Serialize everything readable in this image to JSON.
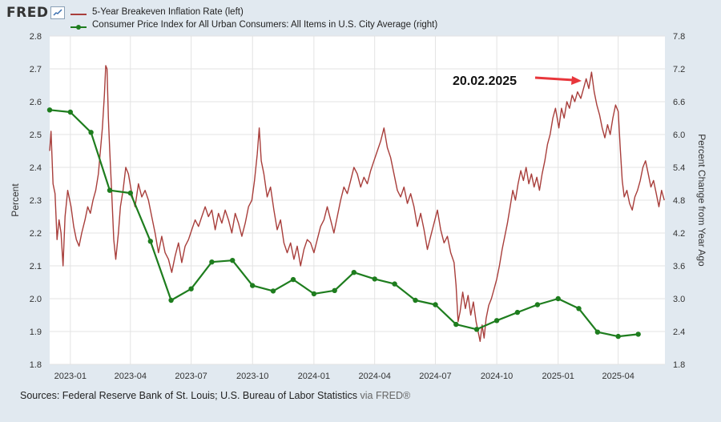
{
  "header": {
    "logo_text": "FRED",
    "logo_icon": "trend-line-icon"
  },
  "legend": [
    {
      "label": "5-Year Breakeven Inflation Rate (left)",
      "color": "#a83e3b",
      "marker": "none"
    },
    {
      "label": "Consumer Price Index for All Urban Consumers: All Items in U.S. City Average (right)",
      "color": "#1e7d1e",
      "marker": "dot"
    }
  ],
  "annotation": {
    "text": "20.02.2025",
    "color": "#e8363b"
  },
  "source": {
    "text": "Sources: Federal Reserve Bank of St. Louis; U.S. Bureau of Labor Statistics",
    "via": "via FRED®"
  },
  "chart_data": {
    "type": "line",
    "grid": true,
    "legend_position": "top-left",
    "x_range": [
      "2022-12-01",
      "2025-06-10"
    ],
    "x_ticks": [
      {
        "date": "2023-01-01",
        "label": "2023-01"
      },
      {
        "date": "2023-04-01",
        "label": "2023-04"
      },
      {
        "date": "2023-07-01",
        "label": "2023-07"
      },
      {
        "date": "2023-10-01",
        "label": "2023-10"
      },
      {
        "date": "2024-01-01",
        "label": "2024-01"
      },
      {
        "date": "2024-04-01",
        "label": "2024-04"
      },
      {
        "date": "2024-07-01",
        "label": "2024-07"
      },
      {
        "date": "2024-10-01",
        "label": "2024-10"
      },
      {
        "date": "2025-01-01",
        "label": "2025-01"
      },
      {
        "date": "2025-04-01",
        "label": "2025-04"
      }
    ],
    "y_left": {
      "label": "Percent",
      "range": [
        1.8,
        2.8
      ],
      "ticks": [
        "1.8",
        "1.9",
        "2.0",
        "2.1",
        "2.2",
        "2.3",
        "2.4",
        "2.5",
        "2.6",
        "2.7",
        "2.8"
      ]
    },
    "y_right": {
      "label": "Percent Change from Year Ago",
      "range": [
        1.8,
        7.8
      ],
      "ticks": [
        "1.8",
        "2.4",
        "3.0",
        "3.6",
        "4.2",
        "4.8",
        "5.4",
        "6.0",
        "6.6",
        "7.2",
        "7.8"
      ]
    },
    "series": [
      {
        "name": "5-Year Breakeven Inflation Rate (left)",
        "axis": "left",
        "color": "#a83e3b",
        "points": [
          [
            "2022-12-01",
            2.45
          ],
          [
            "2022-12-03",
            2.51
          ],
          [
            "2022-12-06",
            2.35
          ],
          [
            "2022-12-09",
            2.32
          ],
          [
            "2022-12-12",
            2.18
          ],
          [
            "2022-12-15",
            2.24
          ],
          [
            "2022-12-18",
            2.2
          ],
          [
            "2022-12-21",
            2.1
          ],
          [
            "2022-12-24",
            2.25
          ],
          [
            "2022-12-28",
            2.33
          ],
          [
            "2023-01-02",
            2.28
          ],
          [
            "2023-01-06",
            2.22
          ],
          [
            "2023-01-10",
            2.18
          ],
          [
            "2023-01-14",
            2.16
          ],
          [
            "2023-01-18",
            2.2
          ],
          [
            "2023-01-23",
            2.24
          ],
          [
            "2023-01-27",
            2.28
          ],
          [
            "2023-01-31",
            2.26
          ],
          [
            "2023-02-04",
            2.3
          ],
          [
            "2023-02-08",
            2.33
          ],
          [
            "2023-02-12",
            2.38
          ],
          [
            "2023-02-15",
            2.45
          ],
          [
            "2023-02-18",
            2.52
          ],
          [
            "2023-02-21",
            2.62
          ],
          [
            "2023-02-23",
            2.71
          ],
          [
            "2023-02-25",
            2.7
          ],
          [
            "2023-02-27",
            2.55
          ],
          [
            "2023-03-01",
            2.45
          ],
          [
            "2023-03-04",
            2.32
          ],
          [
            "2023-03-07",
            2.18
          ],
          [
            "2023-03-10",
            2.12
          ],
          [
            "2023-03-14",
            2.2
          ],
          [
            "2023-03-17",
            2.28
          ],
          [
            "2023-03-21",
            2.33
          ],
          [
            "2023-03-25",
            2.4
          ],
          [
            "2023-03-29",
            2.38
          ],
          [
            "2023-04-03",
            2.32
          ],
          [
            "2023-04-08",
            2.28
          ],
          [
            "2023-04-13",
            2.35
          ],
          [
            "2023-04-18",
            2.31
          ],
          [
            "2023-04-23",
            2.33
          ],
          [
            "2023-04-28",
            2.3
          ],
          [
            "2023-05-03",
            2.25
          ],
          [
            "2023-05-08",
            2.2
          ],
          [
            "2023-05-13",
            2.14
          ],
          [
            "2023-05-18",
            2.19
          ],
          [
            "2023-05-23",
            2.14
          ],
          [
            "2023-05-28",
            2.12
          ],
          [
            "2023-06-02",
            2.08
          ],
          [
            "2023-06-07",
            2.13
          ],
          [
            "2023-06-12",
            2.17
          ],
          [
            "2023-06-17",
            2.11
          ],
          [
            "2023-06-22",
            2.16
          ],
          [
            "2023-06-27",
            2.18
          ],
          [
            "2023-07-02",
            2.21
          ],
          [
            "2023-07-07",
            2.24
          ],
          [
            "2023-07-12",
            2.22
          ],
          [
            "2023-07-17",
            2.25
          ],
          [
            "2023-07-22",
            2.28
          ],
          [
            "2023-07-27",
            2.25
          ],
          [
            "2023-08-01",
            2.27
          ],
          [
            "2023-08-06",
            2.21
          ],
          [
            "2023-08-11",
            2.26
          ],
          [
            "2023-08-16",
            2.23
          ],
          [
            "2023-08-21",
            2.27
          ],
          [
            "2023-08-26",
            2.24
          ],
          [
            "2023-08-31",
            2.2
          ],
          [
            "2023-09-05",
            2.26
          ],
          [
            "2023-09-10",
            2.23
          ],
          [
            "2023-09-15",
            2.19
          ],
          [
            "2023-09-20",
            2.23
          ],
          [
            "2023-09-25",
            2.28
          ],
          [
            "2023-09-30",
            2.3
          ],
          [
            "2023-10-04",
            2.36
          ],
          [
            "2023-10-08",
            2.44
          ],
          [
            "2023-10-11",
            2.52
          ],
          [
            "2023-10-14",
            2.42
          ],
          [
            "2023-10-18",
            2.38
          ],
          [
            "2023-10-23",
            2.31
          ],
          [
            "2023-10-28",
            2.34
          ],
          [
            "2023-11-02",
            2.27
          ],
          [
            "2023-11-07",
            2.21
          ],
          [
            "2023-11-12",
            2.24
          ],
          [
            "2023-11-17",
            2.17
          ],
          [
            "2023-11-22",
            2.14
          ],
          [
            "2023-11-27",
            2.17
          ],
          [
            "2023-12-02",
            2.12
          ],
          [
            "2023-12-07",
            2.16
          ],
          [
            "2023-12-12",
            2.1
          ],
          [
            "2023-12-17",
            2.15
          ],
          [
            "2023-12-22",
            2.18
          ],
          [
            "2023-12-27",
            2.17
          ],
          [
            "2024-01-01",
            2.14
          ],
          [
            "2024-01-06",
            2.18
          ],
          [
            "2024-01-11",
            2.22
          ],
          [
            "2024-01-16",
            2.24
          ],
          [
            "2024-01-21",
            2.28
          ],
          [
            "2024-01-26",
            2.24
          ],
          [
            "2024-01-31",
            2.2
          ],
          [
            "2024-02-05",
            2.25
          ],
          [
            "2024-02-10",
            2.3
          ],
          [
            "2024-02-15",
            2.34
          ],
          [
            "2024-02-20",
            2.32
          ],
          [
            "2024-02-25",
            2.36
          ],
          [
            "2024-03-01",
            2.4
          ],
          [
            "2024-03-06",
            2.38
          ],
          [
            "2024-03-11",
            2.34
          ],
          [
            "2024-03-16",
            2.37
          ],
          [
            "2024-03-21",
            2.35
          ],
          [
            "2024-03-26",
            2.39
          ],
          [
            "2024-03-31",
            2.42
          ],
          [
            "2024-04-05",
            2.45
          ],
          [
            "2024-04-10",
            2.48
          ],
          [
            "2024-04-15",
            2.52
          ],
          [
            "2024-04-20",
            2.46
          ],
          [
            "2024-04-25",
            2.43
          ],
          [
            "2024-04-30",
            2.38
          ],
          [
            "2024-05-05",
            2.33
          ],
          [
            "2024-05-10",
            2.31
          ],
          [
            "2024-05-15",
            2.34
          ],
          [
            "2024-05-20",
            2.29
          ],
          [
            "2024-05-25",
            2.32
          ],
          [
            "2024-05-30",
            2.28
          ],
          [
            "2024-06-04",
            2.22
          ],
          [
            "2024-06-09",
            2.26
          ],
          [
            "2024-06-14",
            2.21
          ],
          [
            "2024-06-19",
            2.15
          ],
          [
            "2024-06-24",
            2.19
          ],
          [
            "2024-06-29",
            2.23
          ],
          [
            "2024-07-04",
            2.27
          ],
          [
            "2024-07-09",
            2.21
          ],
          [
            "2024-07-14",
            2.17
          ],
          [
            "2024-07-19",
            2.19
          ],
          [
            "2024-07-24",
            2.14
          ],
          [
            "2024-07-29",
            2.11
          ],
          [
            "2024-08-01",
            2.04
          ],
          [
            "2024-08-04",
            1.93
          ],
          [
            "2024-08-07",
            1.96
          ],
          [
            "2024-08-11",
            2.02
          ],
          [
            "2024-08-15",
            1.97
          ],
          [
            "2024-08-19",
            2.01
          ],
          [
            "2024-08-23",
            1.95
          ],
          [
            "2024-08-27",
            1.99
          ],
          [
            "2024-08-31",
            1.93
          ],
          [
            "2024-09-03",
            1.9
          ],
          [
            "2024-09-06",
            1.87
          ],
          [
            "2024-09-09",
            1.92
          ],
          [
            "2024-09-12",
            1.88
          ],
          [
            "2024-09-15",
            1.94
          ],
          [
            "2024-09-19",
            1.98
          ],
          [
            "2024-09-23",
            2.0
          ],
          [
            "2024-09-27",
            2.03
          ],
          [
            "2024-10-01",
            2.06
          ],
          [
            "2024-10-05",
            2.1
          ],
          [
            "2024-10-09",
            2.15
          ],
          [
            "2024-10-13",
            2.19
          ],
          [
            "2024-10-17",
            2.23
          ],
          [
            "2024-10-21",
            2.28
          ],
          [
            "2024-10-25",
            2.33
          ],
          [
            "2024-10-29",
            2.3
          ],
          [
            "2024-11-02",
            2.35
          ],
          [
            "2024-11-06",
            2.39
          ],
          [
            "2024-11-10",
            2.36
          ],
          [
            "2024-11-14",
            2.4
          ],
          [
            "2024-11-18",
            2.35
          ],
          [
            "2024-11-22",
            2.38
          ],
          [
            "2024-11-26",
            2.34
          ],
          [
            "2024-11-30",
            2.37
          ],
          [
            "2024-12-04",
            2.33
          ],
          [
            "2024-12-08",
            2.38
          ],
          [
            "2024-12-12",
            2.42
          ],
          [
            "2024-12-16",
            2.47
          ],
          [
            "2024-12-20",
            2.5
          ],
          [
            "2024-12-24",
            2.55
          ],
          [
            "2024-12-28",
            2.58
          ],
          [
            "2025-01-02",
            2.52
          ],
          [
            "2025-01-06",
            2.58
          ],
          [
            "2025-01-10",
            2.55
          ],
          [
            "2025-01-14",
            2.6
          ],
          [
            "2025-01-18",
            2.58
          ],
          [
            "2025-01-22",
            2.62
          ],
          [
            "2025-01-26",
            2.6
          ],
          [
            "2025-01-30",
            2.63
          ],
          [
            "2025-02-04",
            2.61
          ],
          [
            "2025-02-08",
            2.64
          ],
          [
            "2025-02-12",
            2.67
          ],
          [
            "2025-02-16",
            2.64
          ],
          [
            "2025-02-20",
            2.69
          ],
          [
            "2025-02-24",
            2.63
          ],
          [
            "2025-02-28",
            2.59
          ],
          [
            "2025-03-04",
            2.56
          ],
          [
            "2025-03-08",
            2.52
          ],
          [
            "2025-03-12",
            2.49
          ],
          [
            "2025-03-16",
            2.53
          ],
          [
            "2025-03-20",
            2.5
          ],
          [
            "2025-03-24",
            2.55
          ],
          [
            "2025-03-28",
            2.59
          ],
          [
            "2025-04-01",
            2.57
          ],
          [
            "2025-04-04",
            2.46
          ],
          [
            "2025-04-07",
            2.36
          ],
          [
            "2025-04-10",
            2.31
          ],
          [
            "2025-04-14",
            2.33
          ],
          [
            "2025-04-18",
            2.29
          ],
          [
            "2025-04-22",
            2.27
          ],
          [
            "2025-04-26",
            2.31
          ],
          [
            "2025-04-30",
            2.33
          ],
          [
            "2025-05-04",
            2.36
          ],
          [
            "2025-05-08",
            2.4
          ],
          [
            "2025-05-12",
            2.42
          ],
          [
            "2025-05-16",
            2.38
          ],
          [
            "2025-05-20",
            2.34
          ],
          [
            "2025-05-24",
            2.36
          ],
          [
            "2025-05-28",
            2.32
          ],
          [
            "2025-06-01",
            2.28
          ],
          [
            "2025-06-05",
            2.33
          ],
          [
            "2025-06-09",
            2.3
          ]
        ]
      },
      {
        "name": "Consumer Price Index for All Urban Consumers: All Items in U.S. City Average (right)",
        "axis": "right",
        "color": "#1e7d1e",
        "points": [
          [
            "2022-12-01",
            6.45
          ],
          [
            "2023-01-01",
            6.41
          ],
          [
            "2023-02-01",
            6.04
          ],
          [
            "2023-03-01",
            4.98
          ],
          [
            "2023-04-01",
            4.93
          ],
          [
            "2023-05-01",
            4.05
          ],
          [
            "2023-06-01",
            2.97
          ],
          [
            "2023-07-01",
            3.18
          ],
          [
            "2023-08-01",
            3.67
          ],
          [
            "2023-09-01",
            3.7
          ],
          [
            "2023-10-01",
            3.24
          ],
          [
            "2023-11-01",
            3.14
          ],
          [
            "2023-12-01",
            3.35
          ],
          [
            "2024-01-01",
            3.09
          ],
          [
            "2024-02-01",
            3.15
          ],
          [
            "2024-03-01",
            3.48
          ],
          [
            "2024-04-01",
            3.36
          ],
          [
            "2024-05-01",
            3.27
          ],
          [
            "2024-06-01",
            2.97
          ],
          [
            "2024-07-01",
            2.89
          ],
          [
            "2024-08-01",
            2.53
          ],
          [
            "2024-09-01",
            2.44
          ],
          [
            "2024-10-01",
            2.6
          ],
          [
            "2024-11-01",
            2.75
          ],
          [
            "2024-12-01",
            2.89
          ],
          [
            "2025-01-01",
            3.0
          ],
          [
            "2025-02-01",
            2.82
          ],
          [
            "2025-03-01",
            2.39
          ],
          [
            "2025-04-01",
            2.31
          ],
          [
            "2025-05-01",
            2.35
          ]
        ]
      }
    ]
  }
}
